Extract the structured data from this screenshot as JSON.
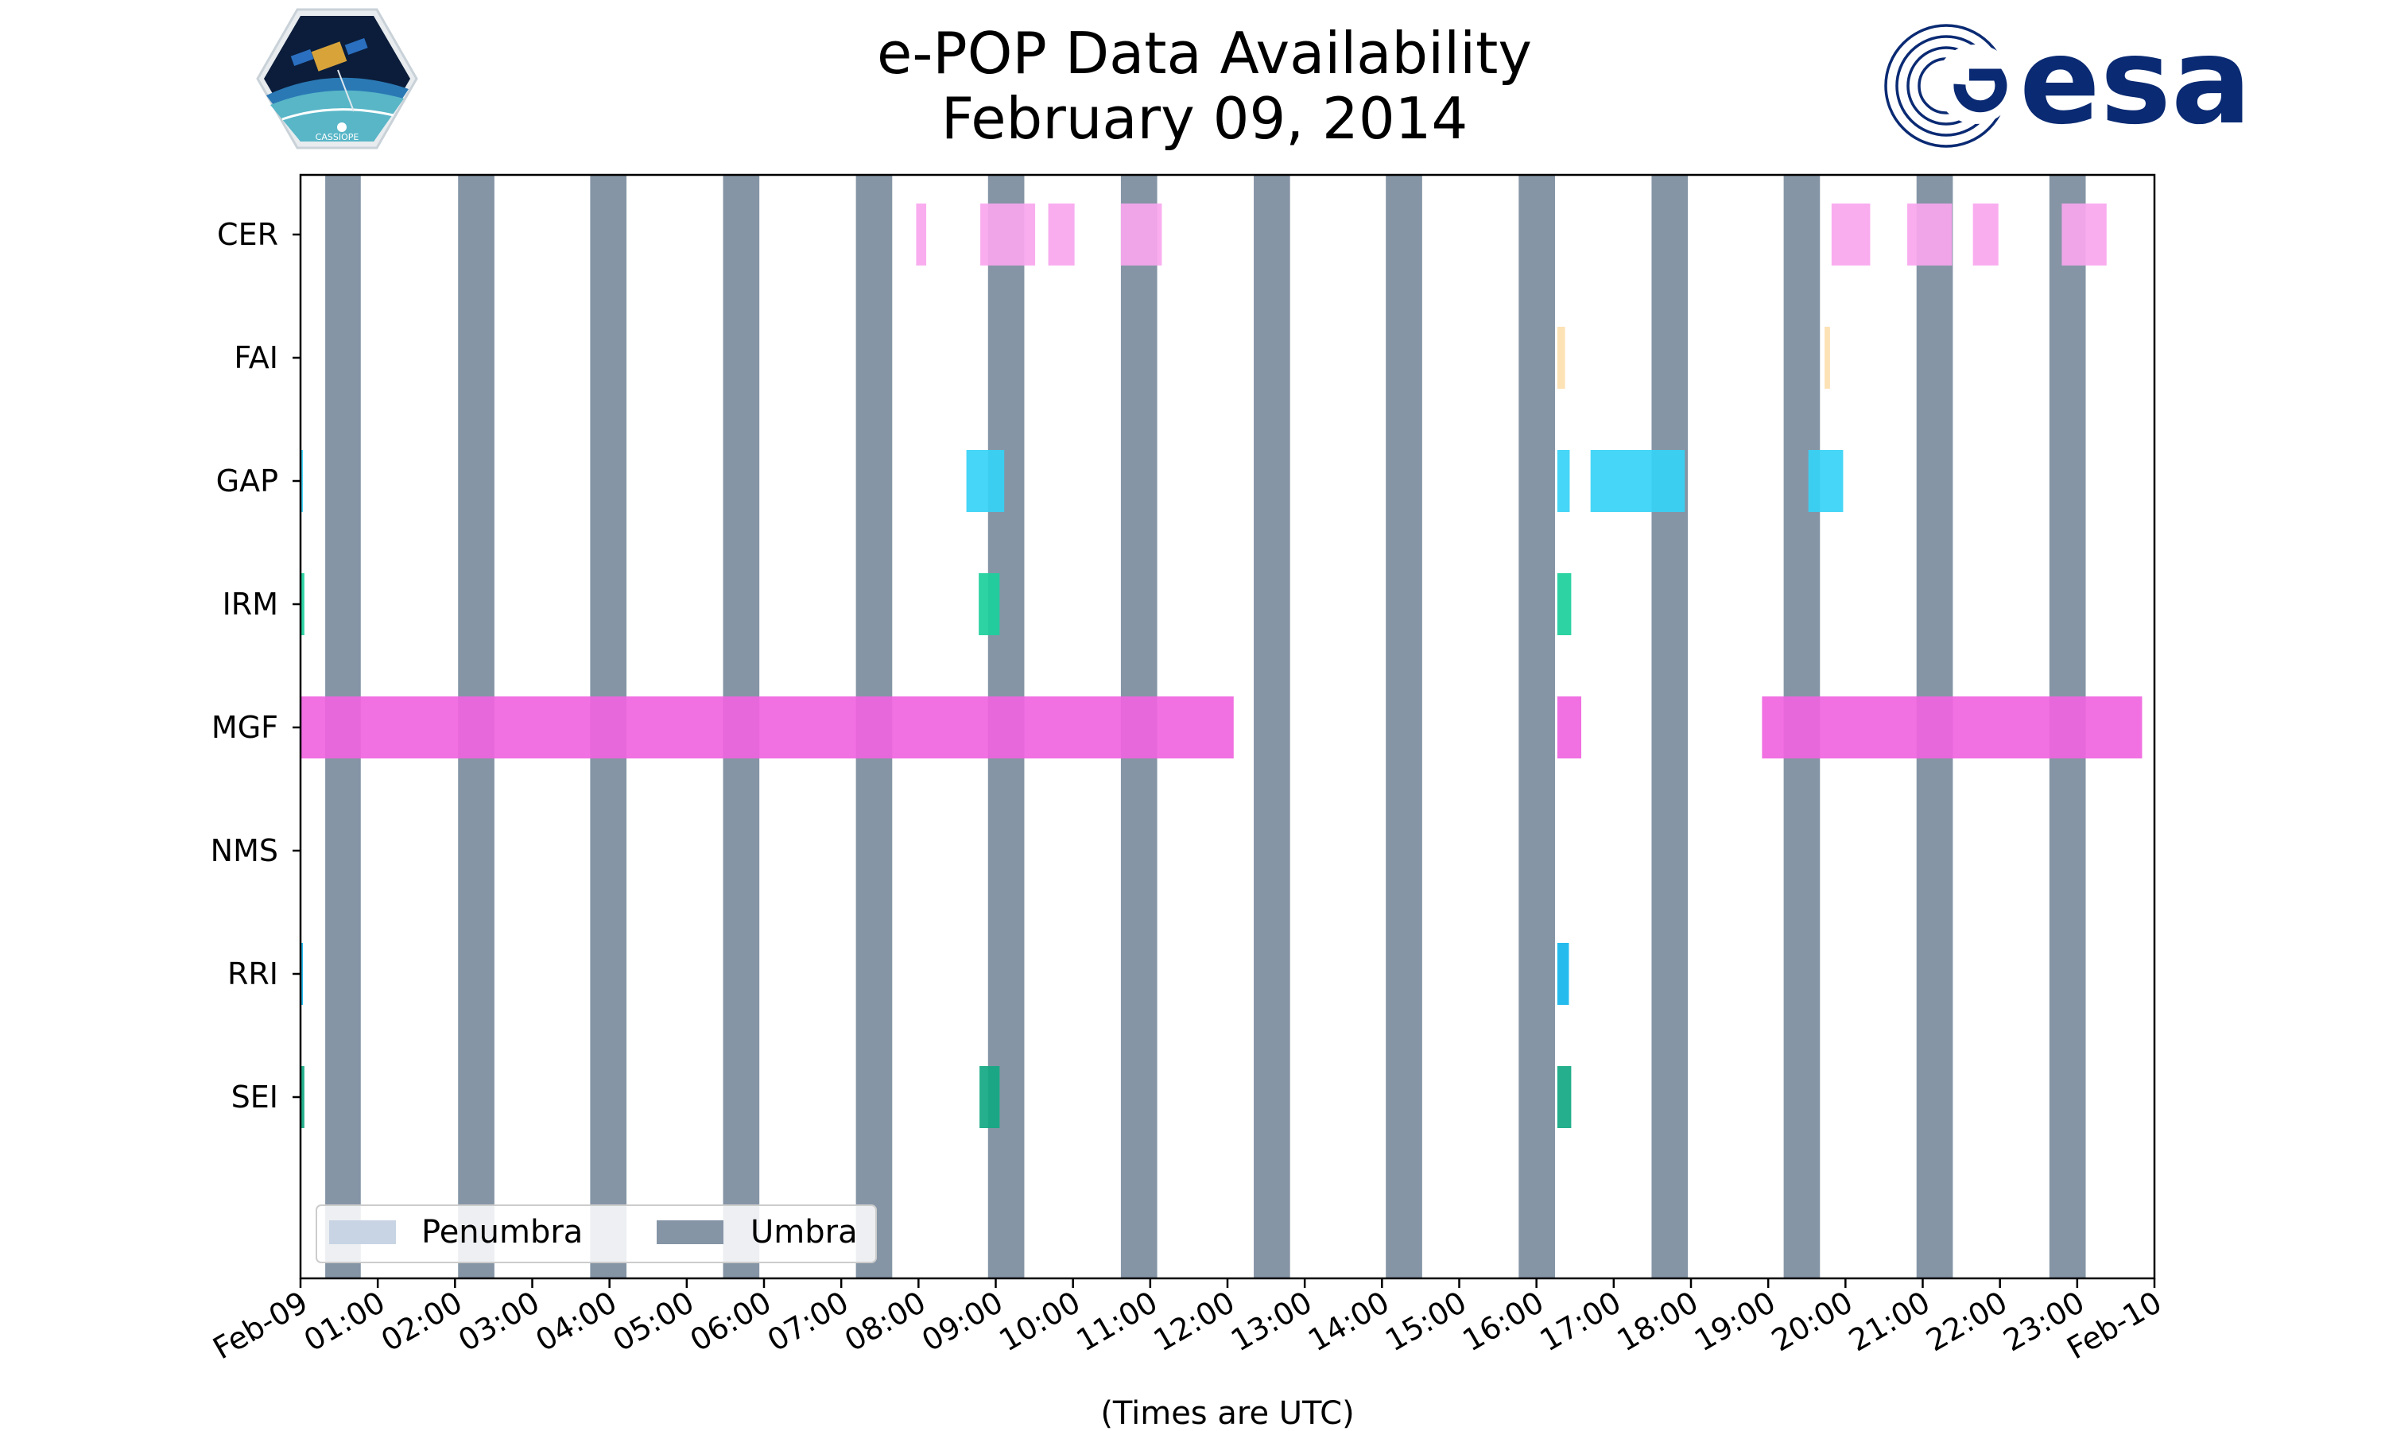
{
  "chart_data": {
    "type": "timeline",
    "title_line1": "e-POP Data Availability",
    "title_line2": "February 09, 2014",
    "xlabel": "(Times are UTC)",
    "xlim_hours": [
      0,
      24
    ],
    "x_tick_labels": [
      "Feb-09",
      "01:00",
      "02:00",
      "03:00",
      "04:00",
      "05:00",
      "06:00",
      "07:00",
      "08:00",
      "09:00",
      "10:00",
      "11:00",
      "12:00",
      "13:00",
      "14:00",
      "15:00",
      "16:00",
      "17:00",
      "18:00",
      "19:00",
      "20:00",
      "21:00",
      "22:00",
      "23:00",
      "Feb-10"
    ],
    "instruments": [
      "CER",
      "FAI",
      "GAP",
      "IRM",
      "MGF",
      "NMS",
      "RRI",
      "SEI"
    ],
    "colors": {
      "CER": "#f9a6ee",
      "FAI": "#fde0b0",
      "GAP": "#36d2f6",
      "IRM": "#1ccf9c",
      "MGF": "#f064e0",
      "RRI": "#12b6ec",
      "SEI": "#12a882",
      "umbra": "#8595a6",
      "penumbra": "#c8d4e4"
    },
    "umbra_intervals": [
      [
        0.32,
        0.78
      ],
      [
        2.04,
        2.51
      ],
      [
        3.75,
        4.22
      ],
      [
        5.47,
        5.94
      ],
      [
        7.19,
        7.66
      ],
      [
        8.9,
        9.37
      ],
      [
        10.62,
        11.09
      ],
      [
        12.34,
        12.81
      ],
      [
        14.05,
        14.52
      ],
      [
        15.77,
        16.24
      ],
      [
        17.49,
        17.96
      ],
      [
        19.2,
        19.67
      ],
      [
        20.92,
        21.39
      ],
      [
        22.64,
        23.11
      ]
    ],
    "penumbra_intervals": [],
    "availability": {
      "CER": [
        [
          7.97,
          8.1
        ],
        [
          8.8,
          9.51
        ],
        [
          9.68,
          10.02
        ],
        [
          10.62,
          11.15
        ],
        [
          19.82,
          20.32
        ],
        [
          20.8,
          21.38
        ],
        [
          21.65,
          21.98
        ],
        [
          22.8,
          23.38
        ]
      ],
      "FAI": [
        [
          16.27,
          16.37
        ],
        [
          19.73,
          19.8
        ]
      ],
      "GAP": [
        [
          0.0,
          0.02
        ],
        [
          8.62,
          9.11
        ],
        [
          16.27,
          16.43
        ],
        [
          16.7,
          17.92
        ],
        [
          19.52,
          19.97
        ]
      ],
      "IRM": [
        [
          0.0,
          0.05
        ],
        [
          8.78,
          9.05
        ],
        [
          16.27,
          16.45
        ]
      ],
      "MGF": [
        [
          0.0,
          12.08
        ],
        [
          16.27,
          16.58
        ],
        [
          18.92,
          23.84
        ]
      ],
      "NMS": [],
      "RRI": [
        [
          0.0,
          0.02
        ],
        [
          16.27,
          16.42
        ]
      ],
      "SEI": [
        [
          0.0,
          0.05
        ],
        [
          8.79,
          9.05
        ],
        [
          16.27,
          16.45
        ]
      ]
    },
    "legend": [
      {
        "key": "penumbra",
        "label": "Penumbra"
      },
      {
        "key": "umbra",
        "label": "Umbra"
      }
    ],
    "legend_position": "lower-left"
  },
  "logos": {
    "left_text": "CASSIOPE",
    "right_text": "esa"
  }
}
